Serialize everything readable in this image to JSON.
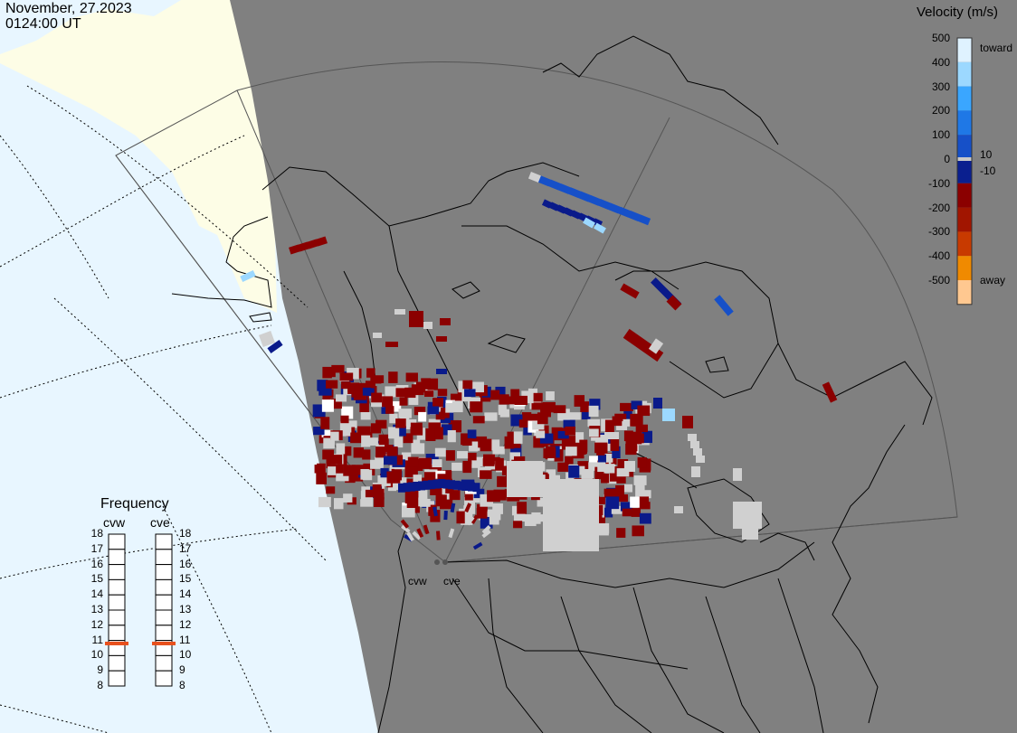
{
  "header": {
    "date": "November, 27.2023",
    "time": "0124:00 UT"
  },
  "colorbar": {
    "title": "Velocity (m/s)",
    "ticks": [
      "500",
      "400",
      "300",
      "200",
      "100",
      "0",
      "-100",
      "-200",
      "-300",
      "-400",
      "-500"
    ],
    "label_toward": "toward",
    "label_away": "away",
    "label_pos": "10",
    "label_neg": "-10",
    "colors": [
      "#dff2ff",
      "#9cd8ff",
      "#3aa6ff",
      "#1f78e6",
      "#1650c8",
      "#0a1f8f",
      "#8b0000",
      "#a11500",
      "#c83a00",
      "#f08a00",
      "#ffc890"
    ]
  },
  "frequency": {
    "title": "Frequency",
    "radars": [
      "cvw",
      "cve"
    ],
    "scale": [
      "18",
      "17",
      "16",
      "15",
      "14",
      "13",
      "12",
      "11",
      "10",
      "9",
      "8"
    ],
    "cvw_mhz": 10.8,
    "cve_mhz": 10.8,
    "marker_color": "#e8501c"
  },
  "radar_labels": {
    "cvw": "cvw",
    "cve": "cve"
  },
  "colors": {
    "ocean": "#e8f6ff",
    "land_day": "#fdfde6",
    "night": "#808080",
    "pos_dark": "#0a1a8a",
    "pos_mid": "#1650c8",
    "pos_light": "#9cd8ff",
    "neg": "#8b0000",
    "ground": "#d0d0d0"
  }
}
